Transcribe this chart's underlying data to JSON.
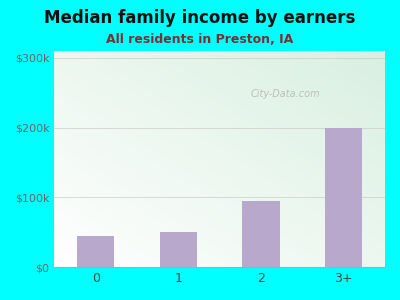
{
  "title": "Median family income by earners",
  "subtitle": "All residents in Preston, IA",
  "categories": [
    "0",
    "1",
    "2",
    "3+"
  ],
  "values": [
    45000,
    50000,
    95000,
    200000
  ],
  "bar_color": "#b8a8cc",
  "outer_bg_color": "#00ffff",
  "title_color": "#111111",
  "subtitle_color": "#7a3030",
  "ytick_labels": [
    "$0",
    "$100k",
    "$200k",
    "$300k"
  ],
  "ytick_values": [
    0,
    100000,
    200000,
    300000
  ],
  "ylim": [
    0,
    310000
  ],
  "watermark": "City-Data.com",
  "title_fontsize": 12,
  "subtitle_fontsize": 9,
  "plot_bg_color_topleft": "#d8eedd",
  "plot_bg_color_bottomright": "#f8fff8"
}
